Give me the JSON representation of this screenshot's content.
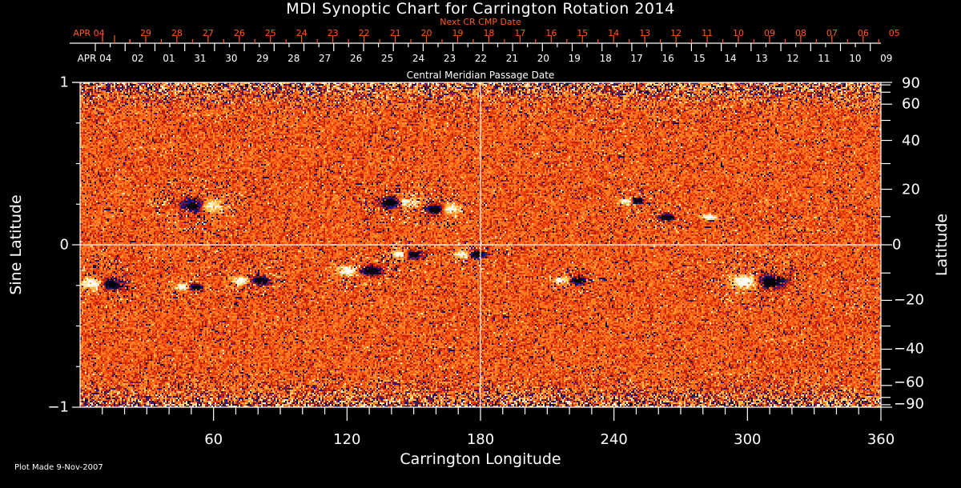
{
  "chart_data": {
    "type": "heatmap",
    "title": "MDI Synoptic Chart for Carrington Rotation 2014",
    "xlabel": "Carrington Longitude",
    "ylabel": "Sine Latitude",
    "ylabel_right": "Latitude",
    "top_axis_label": "Central Meridian Passage Date",
    "top_red_axis_label": "Next CR CMP Date",
    "xlim": [
      0,
      360
    ],
    "ylim": [
      -1,
      1
    ],
    "x_ticks": [
      60,
      120,
      180,
      240,
      300,
      360
    ],
    "x_tick_labels": [
      "60",
      "120",
      "180",
      "240",
      "300",
      "360"
    ],
    "y_ticks_left": [
      1,
      0,
      -1
    ],
    "y_tick_labels_left": [
      "1",
      "0",
      "−1"
    ],
    "y_ticks_right_deg": [
      90,
      60,
      40,
      20,
      0,
      -20,
      -40,
      -60,
      -90
    ],
    "y_tick_labels_right": [
      "90",
      "60",
      "40",
      "20",
      "0",
      "−20",
      "−40",
      "−60",
      "−90"
    ],
    "cmp_dates": [
      "APR 04",
      "02",
      "01",
      "31",
      "30",
      "29",
      "28",
      "27",
      "26",
      "25",
      "24",
      "23",
      "22",
      "21",
      "20",
      "19",
      "18",
      "17",
      "16",
      "15",
      "14",
      "13",
      "12",
      "11",
      "10",
      "09"
    ],
    "next_cr_dates": [
      "APR 04",
      "29",
      "28",
      "27",
      "26",
      "25",
      "24",
      "23",
      "22",
      "21",
      "20",
      "19",
      "18",
      "17",
      "16",
      "15",
      "14",
      "13",
      "12",
      "11",
      "10",
      "09",
      "08",
      "07",
      "06",
      "05"
    ],
    "grid_lines": {
      "longitude": 180,
      "sine_latitude": 0
    },
    "active_regions": [
      {
        "lon": 52,
        "sinlat": 0.24,
        "neg_lon": 52,
        "pos_lon": 58,
        "size": 1.0
      },
      {
        "lon": 142,
        "sinlat": 0.26,
        "neg_lon": 140,
        "pos_lon": 147,
        "size": 0.8
      },
      {
        "lon": 158,
        "sinlat": 0.22,
        "neg_lon": 160,
        "pos_lon": 166,
        "size": 0.7
      },
      {
        "lon": 8,
        "sinlat": -0.24,
        "neg_lon": 14,
        "pos_lon": 6,
        "size": 0.9
      },
      {
        "lon": 48,
        "sinlat": -0.26,
        "neg_lon": 52,
        "pos_lon": 46,
        "size": 0.5
      },
      {
        "lon": 80,
        "sinlat": -0.22,
        "neg_lon": 81,
        "pos_lon": 72,
        "size": 0.6
      },
      {
        "lon": 125,
        "sinlat": -0.16,
        "neg_lon": 131,
        "pos_lon": 120,
        "size": 0.7
      },
      {
        "lon": 146,
        "sinlat": -0.06,
        "neg_lon": 150,
        "pos_lon": 144,
        "size": 0.6
      },
      {
        "lon": 176,
        "sinlat": -0.06,
        "neg_lon": 178,
        "pos_lon": 172,
        "size": 0.6
      },
      {
        "lon": 220,
        "sinlat": -0.22,
        "neg_lon": 224,
        "pos_lon": 216,
        "size": 0.5
      },
      {
        "lon": 304,
        "sinlat": -0.23,
        "neg_lon": 310,
        "pos_lon": 299,
        "size": 1.0
      },
      {
        "lon": 250,
        "sinlat": 0.27,
        "neg_lon": 250,
        "pos_lon": 246,
        "size": 0.5
      },
      {
        "lon": 265,
        "sinlat": 0.17,
        "neg_lon": 264,
        "pos_lon": 283,
        "size": 0.5
      }
    ],
    "colorscale": [
      "#000000",
      "#14148c",
      "#c81e00",
      "#ff5a14",
      "#ff8c28",
      "#ffd264",
      "#ffffff"
    ]
  },
  "footer": {
    "plot_made": "Plot Made  9-Nov-2007"
  }
}
